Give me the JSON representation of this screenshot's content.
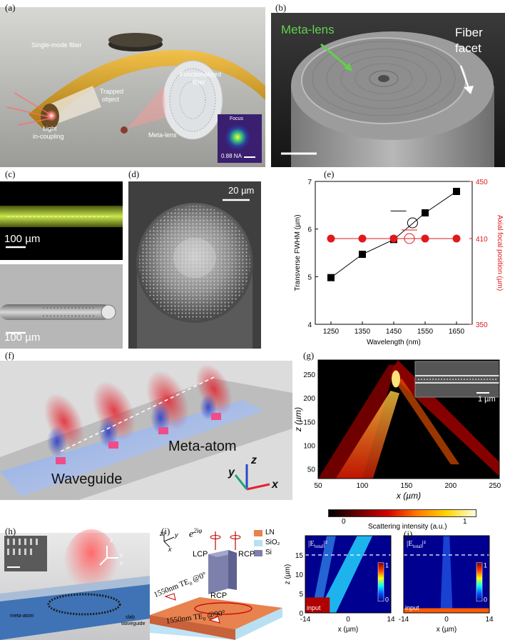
{
  "panels": {
    "a": {
      "label": "(a)",
      "texts": {
        "fiber": "Single-mode fiber",
        "func1": "Functionalized",
        "func2": "fiber",
        "trap1": "Trapped",
        "trap2": "object",
        "light1": "Light",
        "light2": "in-coupling",
        "lens": "Meta-lens",
        "focus": "Focus",
        "na": "0.88 NA"
      }
    },
    "b": {
      "label": "(b)",
      "metalens": "Meta-lens",
      "facet1": "Fiber",
      "facet2": "facet"
    },
    "c": {
      "label": "(c)",
      "scale_top": "100 µm",
      "scale_bottom": "100 µm"
    },
    "d": {
      "label": "(d)",
      "scale": "20 µm"
    },
    "e": {
      "label": "(e)"
    },
    "f": {
      "label": "(f)",
      "atom": "Meta-atom",
      "waveguide": "Waveguide",
      "ax_z": "z",
      "ax_y": "y",
      "ax_x": "x"
    },
    "g": {
      "label": "(g)",
      "scale": "1 µm",
      "cbar_label": "Scattering intensity (a.u.)",
      "cbar_ticks": [
        "0",
        "1"
      ]
    },
    "h": {
      "label": "(h)",
      "atom": "meta-atom",
      "slab1": "slab",
      "slab2": "waveguide",
      "ax_z": "z",
      "ax_y": "y",
      "ax_x": "x"
    },
    "i": {
      "label": "(i)",
      "phase": "e",
      "phase_sup": "2iφ",
      "lcp": "LCP",
      "rcp": "RCP",
      "rcp_box": "RCP",
      "te0": "1550nm TE",
      "te0_sub": "0",
      "te0_ang": " @0°",
      "te90": "1550nm TE",
      "te90_sub": "0",
      "te90_ang": " @90°",
      "legend": [
        "LN",
        "SiO₂",
        "Si"
      ],
      "ax_z": "z",
      "ax_y": "y",
      "ax_x": "x"
    },
    "j": {
      "label": "(j)",
      "field": "|E",
      "field_sub": "total",
      "field_end": "|²",
      "input": "input",
      "cbar_ticks": [
        "1",
        "0"
      ]
    }
  },
  "chart_data": [
    {
      "type": "line",
      "panel": "e",
      "xlabel": "Wavelength (nm)",
      "ylabel": "Transverse FWHM (µm)",
      "ylabel2": "Axial focal position (µm)",
      "x": [
        1250,
        1350,
        1450,
        1550,
        1650
      ],
      "xticks": [
        "1250",
        "1350",
        "1450",
        "1550",
        "1650"
      ],
      "yticks": [
        "4",
        "5",
        "6",
        "7"
      ],
      "y2ticks": [
        "350",
        "410",
        "450"
      ],
      "ylim": [
        4,
        7
      ],
      "y2lim": [
        350,
        450
      ],
      "series": [
        {
          "axis": "left",
          "color": "#000000",
          "values": [
            4.98,
            5.47,
            5.78,
            6.34,
            6.79
          ]
        },
        {
          "axis": "right",
          "color": "#e0191c",
          "values": [
            410,
            410,
            410,
            410,
            410
          ]
        }
      ]
    },
    {
      "type": "heatmap",
      "panel": "g",
      "xlabel": "x (µm)",
      "ylabel": "z (µm)",
      "xlim": [
        50,
        255
      ],
      "ylim": [
        30,
        280
      ],
      "xticks": [
        "50",
        "100",
        "150",
        "200",
        "250"
      ],
      "yticks": [
        "50",
        "100",
        "150",
        "200",
        "250"
      ]
    },
    {
      "type": "heatmap",
      "panel": "j",
      "xlabel": "x (µm)",
      "ylabel": "z (µm)",
      "xlim": [
        -14,
        14
      ],
      "ylim": [
        0,
        20
      ],
      "xticks": [
        "-14",
        "0",
        "14"
      ],
      "yticks": [
        "0",
        "5",
        "10",
        "15"
      ]
    }
  ]
}
